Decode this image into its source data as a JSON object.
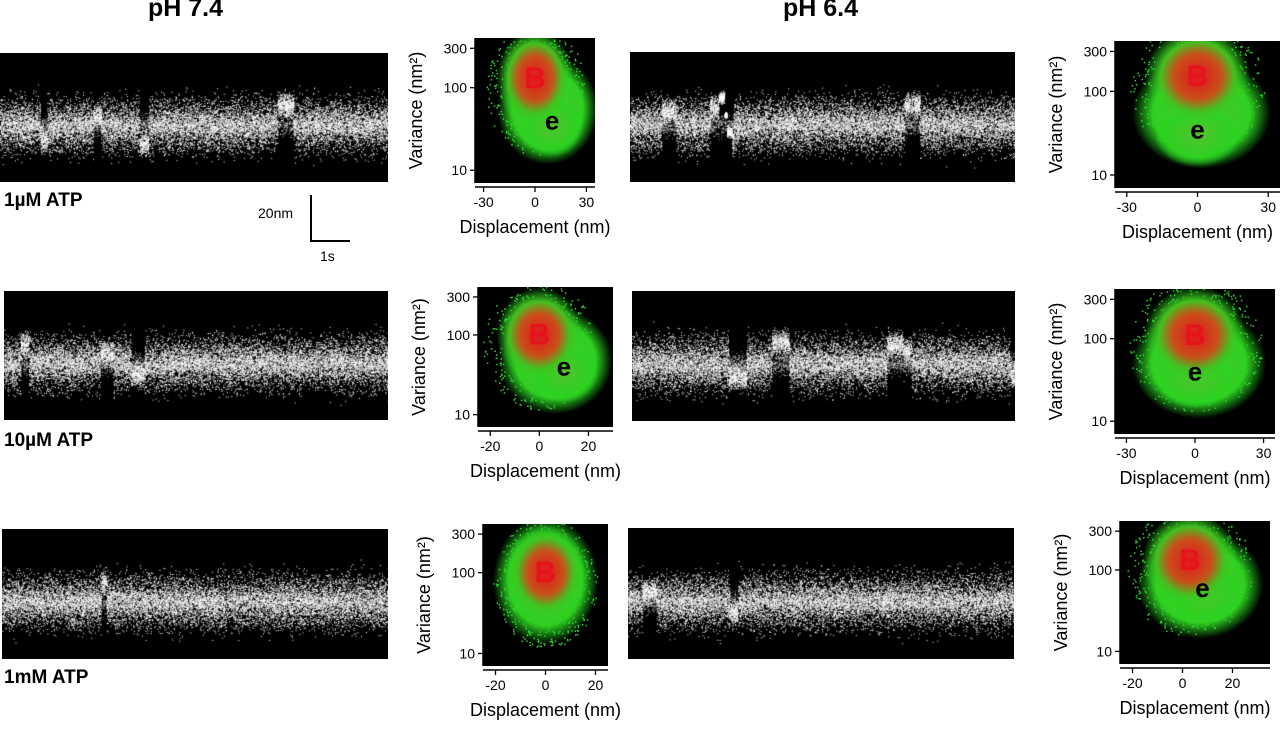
{
  "figure": {
    "columns": [
      "pH 7.4",
      "pH 6.4"
    ],
    "conditions": [
      "1µM ATP",
      "10µM ATP",
      "1mM ATP"
    ],
    "scale_bar": {
      "vertical": "20nm",
      "horizontal": "1s"
    }
  },
  "colors": {
    "trace": "#ffffff",
    "background": "#000000",
    "state_B": "#e5141c",
    "state_e": "#22dd22"
  },
  "chart_data": [
    {
      "type": "heatmap",
      "row": "1µM ATP",
      "column": "pH 7.4",
      "xlabel": "Displacement (nm)",
      "ylabel": "Variance (nm²)",
      "xticks": [
        "-30",
        "0",
        "30"
      ],
      "yticks": [
        "300",
        "100",
        "10"
      ],
      "xlim": [
        -35,
        35
      ],
      "yscale": "log",
      "states": [
        {
          "label": "B",
          "x": 0,
          "y": 130
        },
        {
          "label": "e",
          "x": 10,
          "y": 40
        }
      ]
    },
    {
      "type": "heatmap",
      "row": "1µM ATP",
      "column": "pH 6.4",
      "xlabel": "Displacement (nm)",
      "ylabel": "Variance (nm²)",
      "xticks": [
        "-30",
        "0",
        "30"
      ],
      "yticks": [
        "300",
        "100",
        "10"
      ],
      "xlim": [
        -35,
        35
      ],
      "yscale": "log",
      "states": [
        {
          "label": "B",
          "x": 0,
          "y": 150
        },
        {
          "label": "e",
          "x": 0,
          "y": 35
        }
      ]
    },
    {
      "type": "heatmap",
      "row": "10µM ATP",
      "column": "pH 7.4",
      "xlabel": "Displacement (nm)",
      "ylabel": "Variance (nm²)",
      "xticks": [
        "-20",
        "0",
        "20"
      ],
      "yticks": [
        "300",
        "100",
        "10"
      ],
      "xlim": [
        -25,
        30
      ],
      "yscale": "log",
      "states": [
        {
          "label": "B",
          "x": 0,
          "y": 100
        },
        {
          "label": "e",
          "x": 10,
          "y": 40
        }
      ]
    },
    {
      "type": "heatmap",
      "row": "10µM ATP",
      "column": "pH 6.4",
      "xlabel": "Displacement (nm)",
      "ylabel": "Variance (nm²)",
      "xticks": [
        "-30",
        "0",
        "30"
      ],
      "yticks": [
        "300",
        "100",
        "10"
      ],
      "xlim": [
        -35,
        35
      ],
      "yscale": "log",
      "states": [
        {
          "label": "B",
          "x": 0,
          "y": 110
        },
        {
          "label": "e",
          "x": 0,
          "y": 40
        }
      ]
    },
    {
      "type": "heatmap",
      "row": "1mM ATP",
      "column": "pH 7.4",
      "xlabel": "Displacement (nm)",
      "ylabel": "Variance (nm²)",
      "xticks": [
        "-20",
        "0",
        "20"
      ],
      "yticks": [
        "300",
        "100",
        "10"
      ],
      "xlim": [
        -25,
        25
      ],
      "yscale": "log",
      "states": [
        {
          "label": "B",
          "x": 0,
          "y": 100
        }
      ]
    },
    {
      "type": "heatmap",
      "row": "1mM ATP",
      "column": "pH 6.4",
      "xlabel": "Displacement (nm)",
      "ylabel": "Variance (nm²)",
      "xticks": [
        "-20",
        "0",
        "20"
      ],
      "yticks": [
        "300",
        "100",
        "10"
      ],
      "xlim": [
        -25,
        35
      ],
      "yscale": "log",
      "states": [
        {
          "label": "B",
          "x": 3,
          "y": 130
        },
        {
          "label": "e",
          "x": 8,
          "y": 60
        }
      ]
    }
  ]
}
